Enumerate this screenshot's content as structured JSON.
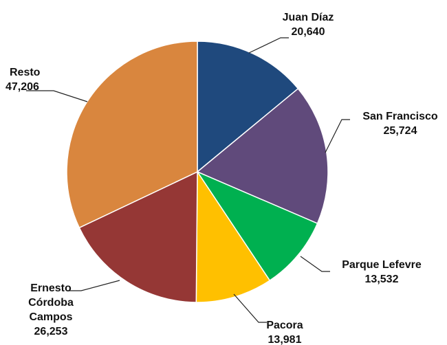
{
  "chart_data": {
    "type": "pie",
    "start_angle_deg": 0,
    "direction": "clockwise",
    "slices": [
      {
        "label": [
          "Juan Díaz"
        ],
        "value_text": "20,640",
        "value": 20640,
        "color": "#1f497d"
      },
      {
        "label": [
          "San Francisco"
        ],
        "value_text": "25,724",
        "value": 25724,
        "color": "#604a7b"
      },
      {
        "label": [
          "Parque Lefevre"
        ],
        "value_text": "13,532",
        "value": 13532,
        "color": "#00b050"
      },
      {
        "label": [
          "Pacora"
        ],
        "value_text": "13,981",
        "value": 13981,
        "color": "#ffc000"
      },
      {
        "label": [
          "Ernesto",
          "Córdoba",
          "Campos"
        ],
        "value_text": "26,253",
        "value": 26253,
        "color": "#953735"
      },
      {
        "label": [
          "Resto"
        ],
        "value_text": "47,206",
        "value": 47206,
        "color": "#d9863e"
      }
    ]
  }
}
